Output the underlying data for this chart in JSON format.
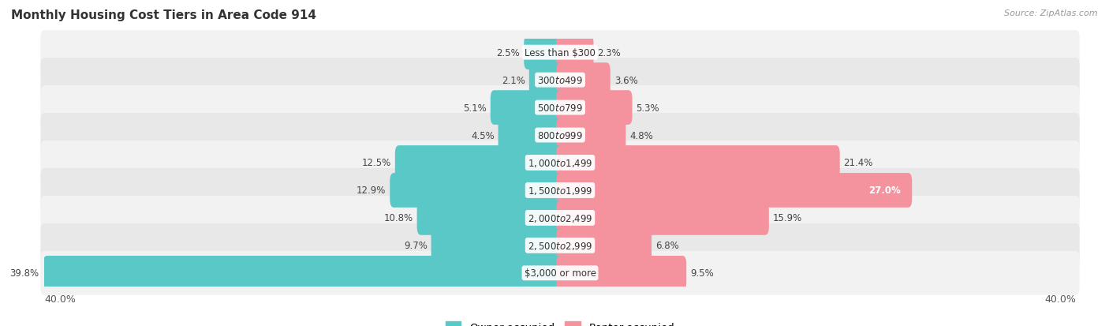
{
  "title": "Monthly Housing Cost Tiers in Area Code 914",
  "source": "Source: ZipAtlas.com",
  "categories": [
    "Less than $300",
    "$300 to $499",
    "$500 to $799",
    "$800 to $999",
    "$1,000 to $1,499",
    "$1,500 to $1,999",
    "$2,000 to $2,499",
    "$2,500 to $2,999",
    "$3,000 or more"
  ],
  "owner_values": [
    2.5,
    2.1,
    5.1,
    4.5,
    12.5,
    12.9,
    10.8,
    9.7,
    39.8
  ],
  "renter_values": [
    2.3,
    3.6,
    5.3,
    4.8,
    21.4,
    27.0,
    15.9,
    6.8,
    9.5
  ],
  "owner_color": "#5bc8c8",
  "renter_color": "#f4929e",
  "row_bg_even": "#f2f2f2",
  "row_bg_odd": "#e8e8e8",
  "axis_max": 40.0,
  "label_fontsize": 8.5,
  "title_fontsize": 11,
  "category_fontsize": 8.5,
  "legend_fontsize": 9.5,
  "bar_height": 0.65
}
